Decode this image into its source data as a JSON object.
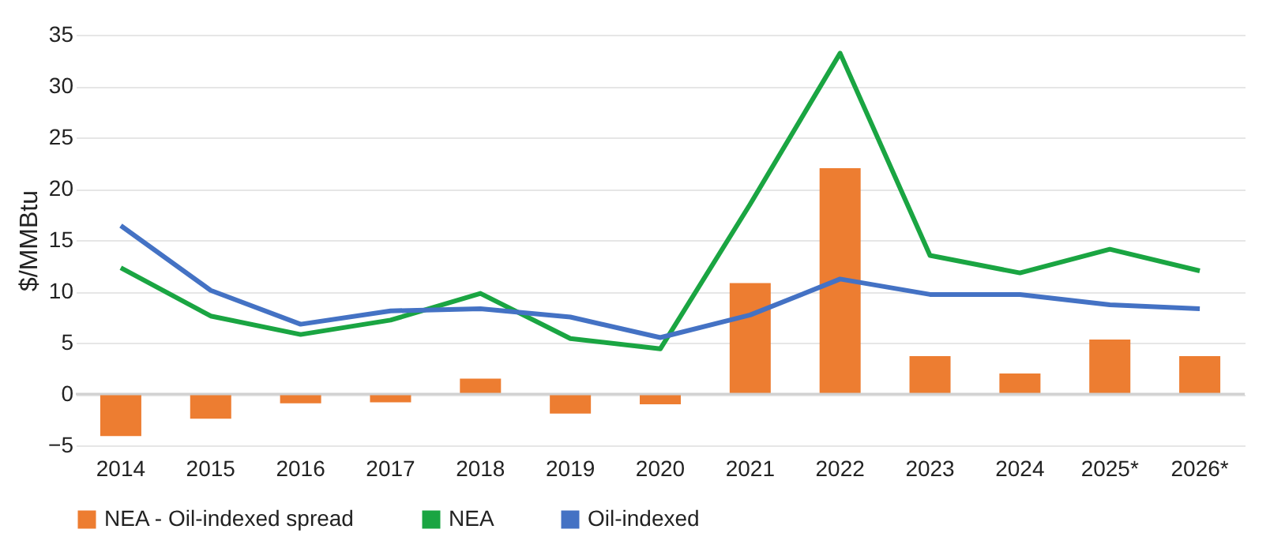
{
  "chart_data": {
    "type": "bar",
    "ylabel": "$/MMBtu",
    "categories": [
      "2014",
      "2015",
      "2016",
      "2017",
      "2018",
      "2019",
      "2020",
      "2021",
      "2022",
      "2023",
      "2024",
      "2025*",
      "2026*"
    ],
    "series": [
      {
        "name": "NEA - Oil-indexed spread",
        "color": "#ed7d31",
        "values": [
          -4.1,
          -2.4,
          -0.9,
          -0.8,
          1.5,
          -1.9,
          -1.0,
          10.8,
          22.0,
          3.7,
          2.0,
          5.3,
          3.7
        ]
      },
      {
        "name": "NEA",
        "type": "line",
        "color": "#1aa542",
        "values": [
          12.3,
          7.6,
          5.8,
          7.2,
          9.8,
          5.4,
          4.4,
          18.5,
          33.2,
          13.5,
          11.8,
          14.1,
          12.0
        ]
      },
      {
        "name": "Oil-indexed",
        "type": "line",
        "color": "#4472c4",
        "values": [
          16.4,
          10.1,
          6.8,
          8.1,
          8.3,
          7.5,
          5.5,
          7.7,
          11.2,
          9.7,
          9.7,
          8.7,
          8.3
        ]
      }
    ],
    "ylim": [
      -5,
      35
    ],
    "yticks": [
      -5,
      0,
      5,
      10,
      15,
      20,
      25,
      30,
      35
    ],
    "grid": "y",
    "legend": "bottom"
  }
}
